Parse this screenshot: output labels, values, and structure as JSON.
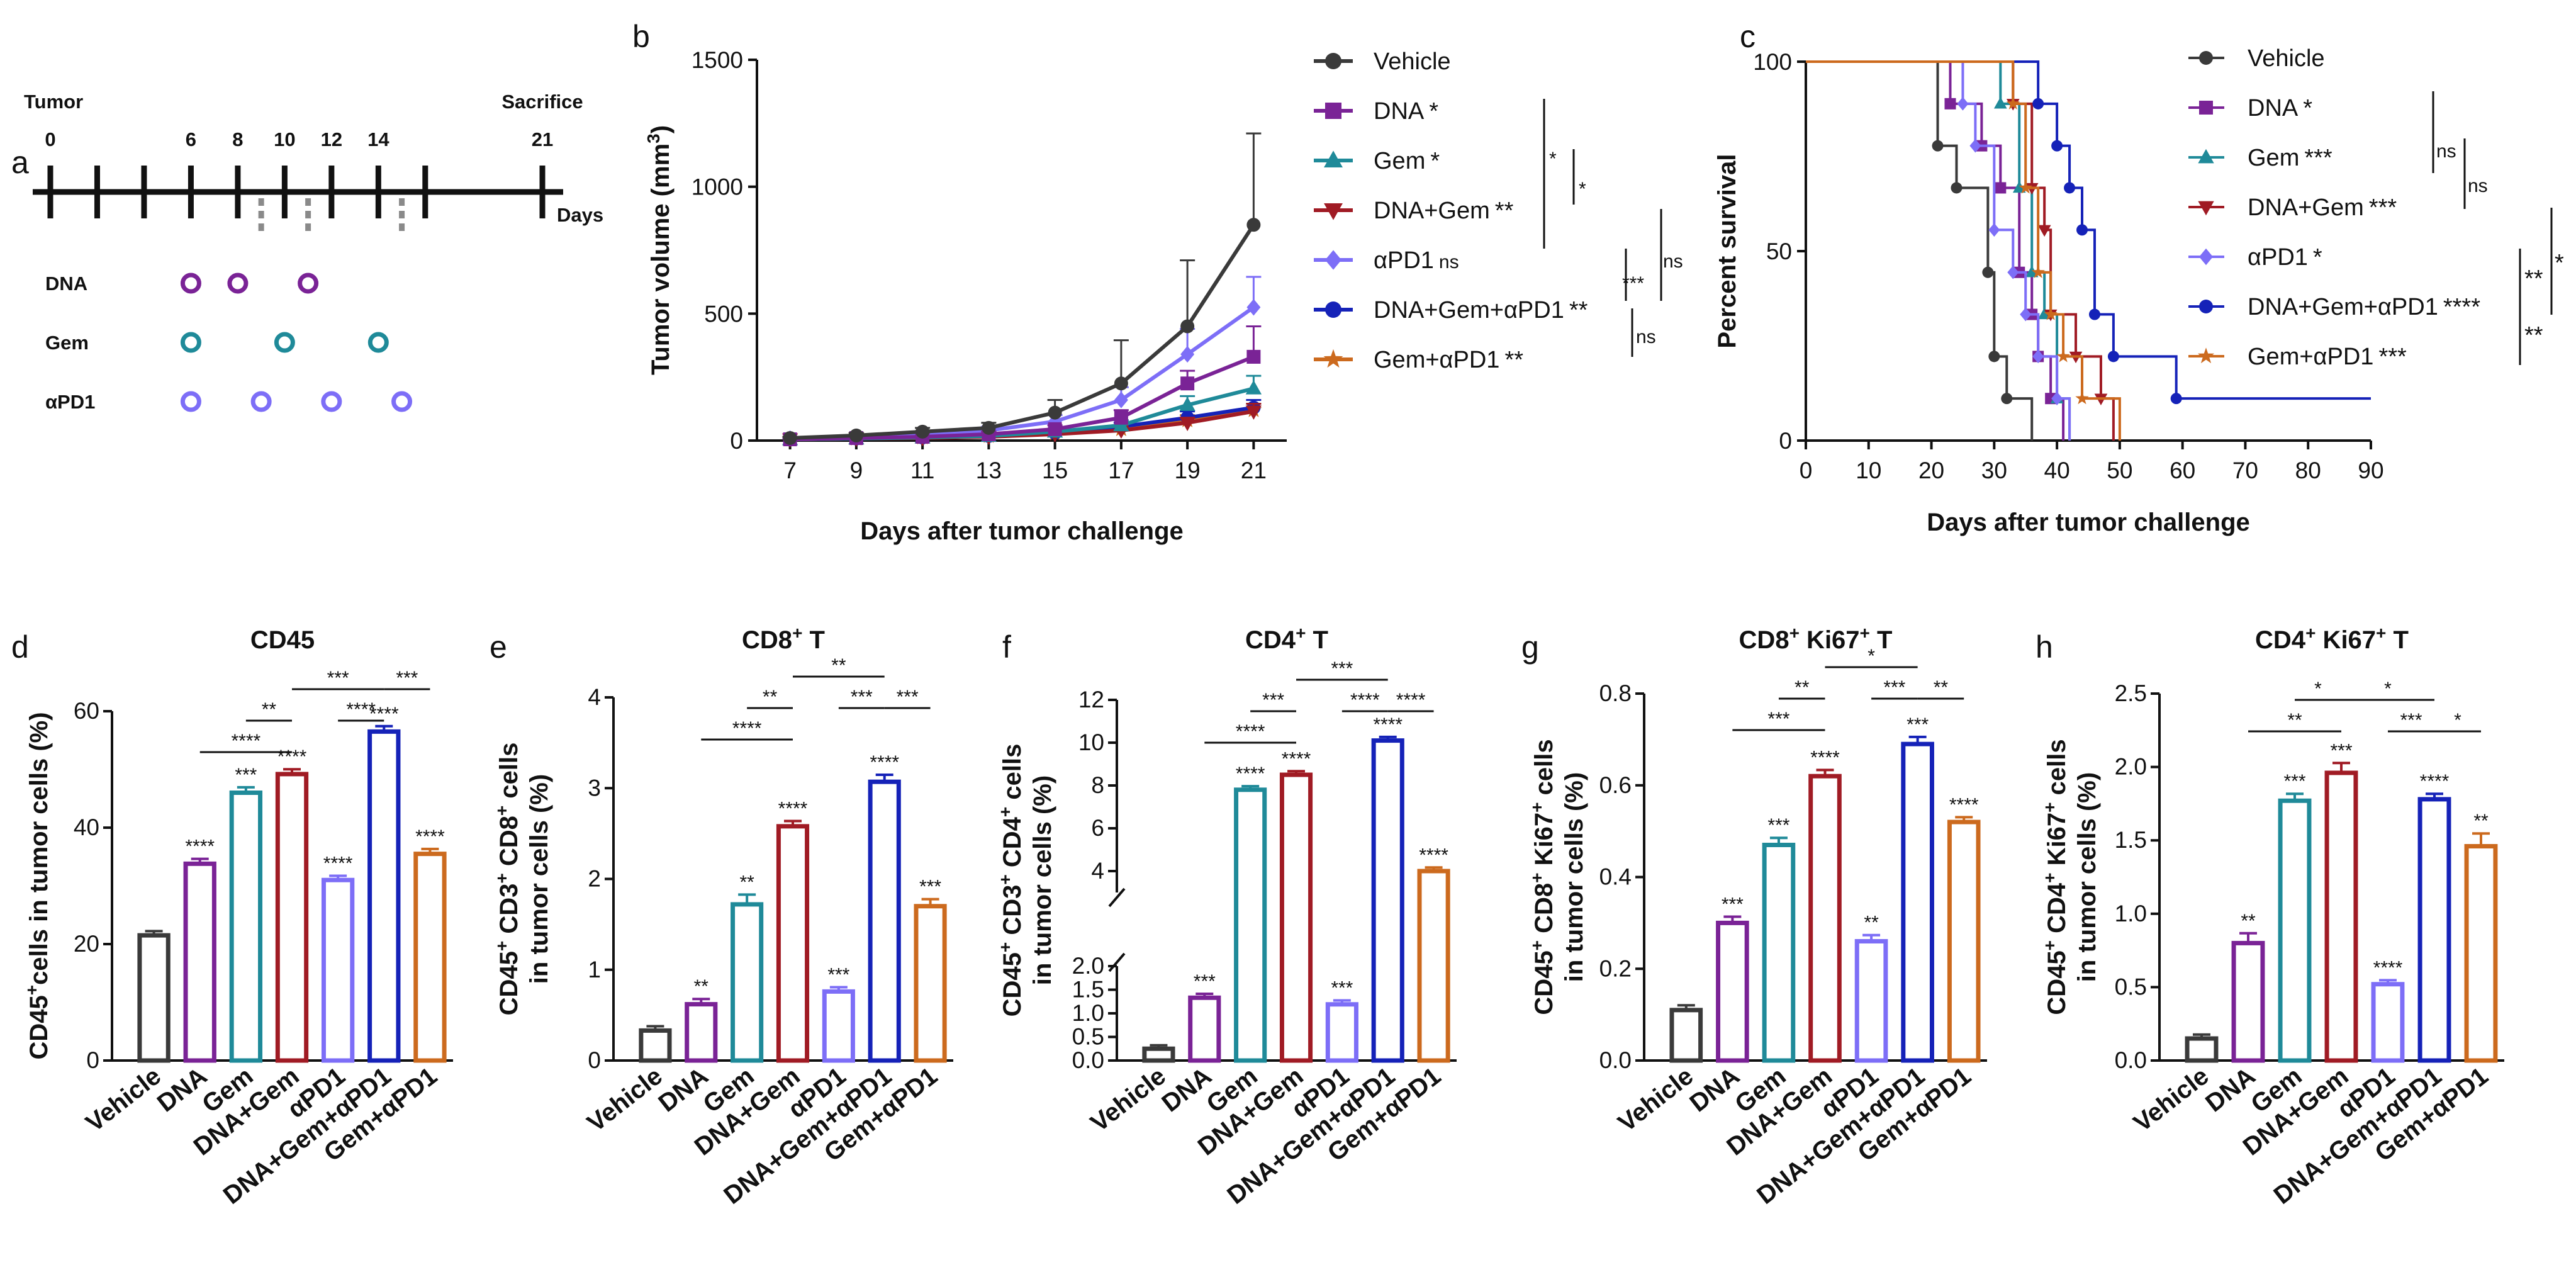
{
  "panels": {
    "a": {
      "letter": "a",
      "start_label": "Tumor",
      "end_label": "Sacrifice",
      "axis_label": "Days",
      "day_labels": [
        "0",
        "6",
        "8",
        "10",
        "12",
        "14",
        "21"
      ],
      "rows": [
        {
          "name": "DNA",
          "color": "#7a2396",
          "days": [
            6,
            8,
            11
          ]
        },
        {
          "name": "Gem",
          "color": "#1f8a99",
          "days": [
            6,
            10,
            14
          ]
        },
        {
          "name": "αPD1",
          "color": "#7d6ef7",
          "days": [
            6,
            9,
            12,
            15
          ]
        }
      ]
    },
    "b": {
      "letter": "b"
    },
    "c": {
      "letter": "c"
    },
    "d": {
      "letter": "d"
    },
    "e": {
      "letter": "e"
    },
    "f": {
      "letter": "f"
    },
    "g": {
      "letter": "g"
    },
    "h": {
      "letter": "h"
    }
  },
  "groups": [
    {
      "name": "Vehicle",
      "color": "#3a3a3a",
      "marker": "circle"
    },
    {
      "name": "DNA",
      "color": "#7a2396",
      "marker": "square"
    },
    {
      "name": "Gem",
      "color": "#1f8a99",
      "marker": "triangle"
    },
    {
      "name": "DNA+Gem",
      "color": "#a01b24",
      "marker": "triangle-down"
    },
    {
      "name": "αPD1",
      "color": "#7d6ef7",
      "marker": "diamond"
    },
    {
      "name": "DNA+Gem+αPD1",
      "color": "#1522b8",
      "marker": "circle"
    },
    {
      "name": "Gem+αPD1",
      "color": "#cc6a1e",
      "marker": "star"
    }
  ],
  "chart_data": [
    {
      "id": "b",
      "type": "line",
      "xlabel": "Days after tumor challenge",
      "ylabel": "Tumor volume (mm3)",
      "ylabel_main": "Tumor volume (mm",
      "ylabel_sup": "3",
      "ylabel_end": ")",
      "x": [
        7,
        9,
        11,
        13,
        15,
        17,
        19,
        21
      ],
      "xlim": [
        6,
        22
      ],
      "ylim": [
        0,
        1500
      ],
      "yticks": [
        0,
        500,
        1000,
        1500
      ],
      "series": [
        {
          "name": "Vehicle",
          "values": [
            10,
            20,
            35,
            50,
            110,
            225,
            450,
            850
          ],
          "errors": [
            5,
            10,
            15,
            20,
            50,
            170,
            260,
            360
          ],
          "sig": ""
        },
        {
          "name": "DNA",
          "values": [
            5,
            10,
            15,
            25,
            45,
            90,
            225,
            330
          ],
          "errors": [
            3,
            5,
            5,
            10,
            15,
            30,
            50,
            120
          ],
          "sig": "*"
        },
        {
          "name": "Gem",
          "values": [
            5,
            8,
            12,
            18,
            35,
            60,
            140,
            205
          ],
          "errors": [
            3,
            4,
            5,
            8,
            12,
            20,
            35,
            50
          ],
          "sig": "*"
        },
        {
          "name": "DNA+Gem",
          "values": [
            5,
            8,
            10,
            15,
            25,
            40,
            70,
            115
          ],
          "errors": [
            2,
            3,
            4,
            5,
            8,
            12,
            20,
            30
          ],
          "sig": "**"
        },
        {
          "name": "αPD1",
          "values": [
            8,
            15,
            25,
            40,
            75,
            160,
            340,
            525
          ],
          "errors": [
            4,
            6,
            10,
            15,
            25,
            50,
            100,
            120
          ],
          "sig": "ns"
        },
        {
          "name": "DNA+Gem+αPD1",
          "values": [
            5,
            8,
            12,
            18,
            30,
            55,
            90,
            130
          ],
          "errors": [
            2,
            3,
            4,
            6,
            10,
            15,
            25,
            30
          ],
          "sig": "**"
        },
        {
          "name": "Gem+αPD1",
          "values": [
            5,
            8,
            12,
            18,
            28,
            45,
            80,
            120
          ],
          "errors": [
            2,
            3,
            4,
            6,
            9,
            12,
            20,
            25
          ],
          "sig": "**"
        }
      ],
      "comparisons": [
        {
          "label": "*"
        },
        {
          "label": "*"
        },
        {
          "label": "***"
        },
        {
          "label": "ns"
        },
        {
          "label": "ns"
        }
      ]
    },
    {
      "id": "c",
      "type": "line",
      "subtype": "survival",
      "xlabel": "Days after tumor challenge",
      "ylabel": "Percent survival",
      "xlim": [
        0,
        90
      ],
      "ylim": [
        0,
        100
      ],
      "xticks": [
        0,
        10,
        20,
        30,
        40,
        50,
        60,
        70,
        80,
        90
      ],
      "yticks": [
        0,
        50,
        100
      ],
      "series": [
        {
          "name": "Vehicle",
          "sig": "",
          "steps": [
            [
              0,
              100
            ],
            [
              21,
              77.8
            ],
            [
              24,
              66.7
            ],
            [
              29,
              44.4
            ],
            [
              30,
              22.2
            ],
            [
              32,
              11.1
            ],
            [
              36,
              0
            ]
          ]
        },
        {
          "name": "DNA",
          "sig": "*",
          "steps": [
            [
              0,
              100
            ],
            [
              23,
              88.9
            ],
            [
              28,
              77.8
            ],
            [
              31,
              66.7
            ],
            [
              34,
              44.4
            ],
            [
              36,
              33.3
            ],
            [
              37,
              22.2
            ],
            [
              39,
              11.1
            ],
            [
              41,
              0
            ]
          ]
        },
        {
          "name": "Gem",
          "sig": "***",
          "steps": [
            [
              0,
              100
            ],
            [
              31,
              88.9
            ],
            [
              34,
              66.7
            ],
            [
              36,
              44.4
            ],
            [
              38,
              33.3
            ],
            [
              40,
              11.1
            ],
            [
              42,
              0
            ]
          ]
        },
        {
          "name": "DNA+Gem",
          "sig": "***",
          "steps": [
            [
              0,
              100
            ],
            [
              33,
              88.9
            ],
            [
              36,
              66.7
            ],
            [
              38,
              55.6
            ],
            [
              39,
              33.3
            ],
            [
              43,
              22.2
            ],
            [
              47,
              11.1
            ],
            [
              49,
              0
            ]
          ]
        },
        {
          "name": "αPD1",
          "sig": "*",
          "steps": [
            [
              0,
              100
            ],
            [
              25,
              88.9
            ],
            [
              27,
              77.8
            ],
            [
              30,
              55.6
            ],
            [
              33,
              44.4
            ],
            [
              35,
              33.3
            ],
            [
              37,
              22.2
            ],
            [
              40,
              11.1
            ],
            [
              42,
              0
            ]
          ]
        },
        {
          "name": "DNA+Gem+αPD1",
          "sig": "****",
          "steps": [
            [
              0,
              100
            ],
            [
              37,
              88.9
            ],
            [
              40,
              77.8
            ],
            [
              42,
              66.7
            ],
            [
              44,
              55.6
            ],
            [
              46,
              33.3
            ],
            [
              49,
              22.2
            ],
            [
              59,
              11.1
            ],
            [
              90,
              11.1
            ]
          ]
        },
        {
          "name": "Gem+αPD1",
          "sig": "***",
          "steps": [
            [
              0,
              100
            ],
            [
              33,
              88.9
            ],
            [
              35,
              66.7
            ],
            [
              37,
              44.4
            ],
            [
              39,
              33.3
            ],
            [
              41,
              22.2
            ],
            [
              44,
              11.1
            ],
            [
              50,
              0
            ]
          ]
        }
      ],
      "comparisons": [
        {
          "label": "ns"
        },
        {
          "label": "ns"
        },
        {
          "label": "**"
        },
        {
          "label": "*"
        },
        {
          "label": "**"
        }
      ]
    },
    {
      "id": "d",
      "type": "bar",
      "title": "CD45",
      "ylabel": "CD45+cells in tumor cells (%)",
      "ylabel_parts": [
        "CD45",
        "+",
        "cells in tumor cells (%)"
      ],
      "ylim": [
        0,
        60
      ],
      "yticks": [
        0,
        20,
        40,
        60
      ],
      "categories": [
        "Vehicle",
        "DNA",
        "Gem",
        "DNA+Gem",
        "αPD1",
        "DNA+Gem+αPD1",
        "Gem+αPD1"
      ],
      "values": [
        21.5,
        33.8,
        46.0,
        49.2,
        31.0,
        56.5,
        35.5
      ],
      "errors": [
        0.3,
        0.4,
        0.5,
        0.4,
        0.3,
        0.5,
        0.4
      ],
      "bar_labels": [
        "",
        "****",
        "***",
        "****",
        "****",
        "****",
        "****"
      ],
      "brackets": [
        {
          "from": 2,
          "to": 3,
          "label": "**",
          "level": 1
        },
        {
          "from": 1,
          "to": 3,
          "label": "****",
          "level": 0
        },
        {
          "from": 4,
          "to": 5,
          "label": "****",
          "level": 1
        },
        {
          "from": 3,
          "to": 5,
          "label": "***",
          "level": 2
        },
        {
          "from": 5,
          "to": 6,
          "label": "***",
          "level": 2
        }
      ]
    },
    {
      "id": "e",
      "type": "bar",
      "title": "CD8+ T",
      "title_parts": [
        "CD8",
        "+",
        " T"
      ],
      "ylabel": "CD45+ CD3+ CD8+ cells in tumor cells (%)",
      "ylabel_line1_parts": [
        "CD45",
        "+",
        " CD3",
        "+",
        " CD8",
        "+",
        " cells"
      ],
      "ylabel_line2": "in tumor cells (%)",
      "ylim": [
        0,
        4
      ],
      "yticks": [
        0,
        1,
        2,
        3,
        4
      ],
      "categories": [
        "Vehicle",
        "DNA",
        "Gem",
        "DNA+Gem",
        "αPD1",
        "DNA+Gem+αPD1",
        "Gem+αPD1"
      ],
      "values": [
        0.33,
        0.62,
        1.72,
        2.58,
        0.76,
        3.07,
        1.7
      ],
      "errors": [
        0.02,
        0.03,
        0.08,
        0.03,
        0.02,
        0.05,
        0.05
      ],
      "bar_labels": [
        "",
        "**",
        "**",
        "****",
        "***",
        "****",
        "***"
      ],
      "brackets": [
        {
          "from": 2,
          "to": 3,
          "label": "**",
          "level": 1
        },
        {
          "from": 1,
          "to": 3,
          "label": "****",
          "level": 0
        },
        {
          "from": 4,
          "to": 5,
          "label": "***",
          "level": 1
        },
        {
          "from": 3,
          "to": 5,
          "label": "**",
          "level": 2
        },
        {
          "from": 5,
          "to": 6,
          "label": "***",
          "level": 1
        }
      ]
    },
    {
      "id": "f",
      "type": "bar",
      "title": "CD4+ T",
      "title_parts": [
        "CD4",
        "+",
        " T"
      ],
      "ylabel": "CD45+ CD3+ CD4+ cells in tumor cells (%)",
      "ylabel_line1_parts": [
        "CD45",
        "+",
        " CD3",
        "+",
        " CD4",
        "+",
        " cells"
      ],
      "ylabel_line2": "in tumor cells (%)",
      "axis_break": {
        "lower": [
          0,
          2
        ],
        "upper": [
          3,
          12
        ]
      },
      "yticks_lower": [
        0.0,
        0.5,
        1.0,
        1.5,
        2.0
      ],
      "yticks_upper": [
        4,
        6,
        8,
        10,
        12
      ],
      "yticks_lower_labels": [
        "0.0",
        "0.5",
        "1.0",
        "1.5",
        "2.0"
      ],
      "yticks_upper_labels": [
        "4",
        "6",
        "8",
        "10",
        "12"
      ],
      "categories": [
        "Vehicle",
        "DNA",
        "Gem",
        "DNA+Gem",
        "αPD1",
        "DNA+Gem+αPD1",
        "Gem+αPD1"
      ],
      "values": [
        0.25,
        1.33,
        7.8,
        8.5,
        1.19,
        10.1,
        4.0
      ],
      "errors": [
        0.02,
        0.03,
        0.05,
        0.05,
        0.03,
        0.05,
        0.05
      ],
      "bar_labels": [
        "",
        "***",
        "****",
        "****",
        "***",
        "****",
        "****"
      ],
      "brackets": [
        {
          "from": 2,
          "to": 3,
          "label": "***",
          "level": 1
        },
        {
          "from": 1,
          "to": 3,
          "label": "****",
          "level": 0
        },
        {
          "from": 4,
          "to": 5,
          "label": "****",
          "level": 1
        },
        {
          "from": 3,
          "to": 5,
          "label": "***",
          "level": 2
        },
        {
          "from": 5,
          "to": 6,
          "label": "****",
          "level": 1
        }
      ]
    },
    {
      "id": "g",
      "type": "bar",
      "title": "CD8+ Ki67+ T",
      "title_parts": [
        "CD8",
        "+",
        " Ki67",
        "+",
        " T"
      ],
      "ylabel": "CD45+ CD8+ Ki67+ cells in tumor cells (%)",
      "ylabel_line1_parts": [
        "CD45",
        "+",
        " CD8",
        "+",
        " Ki67",
        "+",
        " cells"
      ],
      "ylabel_line2": "in tumor cells (%)",
      "ylim": [
        0,
        0.8
      ],
      "yticks": [
        0.0,
        0.2,
        0.4,
        0.6,
        0.8
      ],
      "ytick_labels": [
        "0.0",
        "0.2",
        "0.4",
        "0.6",
        "0.8"
      ],
      "categories": [
        "Vehicle",
        "DNA",
        "Gem",
        "DNA+Gem",
        "αPD1",
        "DNA+Gem+αPD1",
        "Gem+αPD1"
      ],
      "values": [
        0.11,
        0.3,
        0.47,
        0.62,
        0.26,
        0.69,
        0.52
      ],
      "errors": [
        0.005,
        0.008,
        0.01,
        0.008,
        0.008,
        0.01,
        0.005
      ],
      "bar_labels": [
        "",
        "***",
        "***",
        "****",
        "**",
        "***",
        "****"
      ],
      "brackets": [
        {
          "from": 2,
          "to": 3,
          "label": "**",
          "level": 1
        },
        {
          "from": 1,
          "to": 3,
          "label": "***",
          "level": 0
        },
        {
          "from": 4,
          "to": 5,
          "label": "***",
          "level": 1
        },
        {
          "from": 3,
          "to": 5,
          "label": "*",
          "level": 2
        },
        {
          "from": 5,
          "to": 6,
          "label": "**",
          "level": 1
        }
      ]
    },
    {
      "id": "h",
      "type": "bar",
      "title": "CD4+ Ki67+ T",
      "title_parts": [
        "CD4",
        "+",
        " Ki67",
        "+",
        " T"
      ],
      "ylabel": "CD45+ CD4+ Ki67+ cells in tumor cells (%)",
      "ylabel_line1_parts": [
        "CD45",
        "+",
        " CD4",
        "+",
        " Ki67",
        "+",
        " cells"
      ],
      "ylabel_line2": "in tumor cells (%)",
      "ylim": [
        0,
        2.5
      ],
      "yticks": [
        0.0,
        0.5,
        1.0,
        1.5,
        2.0,
        2.5
      ],
      "ytick_labels": [
        "0.0",
        "0.5",
        "1.0",
        "1.5",
        "2.0",
        "2.5"
      ],
      "categories": [
        "Vehicle",
        "DNA",
        "Gem",
        "DNA+Gem",
        "αPD1",
        "DNA+Gem+αPD1",
        "Gem+αPD1"
      ],
      "values": [
        0.15,
        0.8,
        1.77,
        1.96,
        0.52,
        1.78,
        1.46
      ],
      "errors": [
        0.01,
        0.05,
        0.03,
        0.05,
        0.01,
        0.02,
        0.07
      ],
      "bar_labels": [
        "",
        "**",
        "***",
        "***",
        "****",
        "****",
        "**"
      ],
      "brackets": [
        {
          "from": 2,
          "to": 3,
          "label": "*",
          "level": 1
        },
        {
          "from": 1,
          "to": 3,
          "label": "**",
          "level": 0
        },
        {
          "from": 4,
          "to": 5,
          "label": "***",
          "level": 0
        },
        {
          "from": 3,
          "to": 5,
          "label": "*",
          "level": 1
        },
        {
          "from": 5,
          "to": 6,
          "label": "*",
          "level": 0
        }
      ]
    }
  ]
}
